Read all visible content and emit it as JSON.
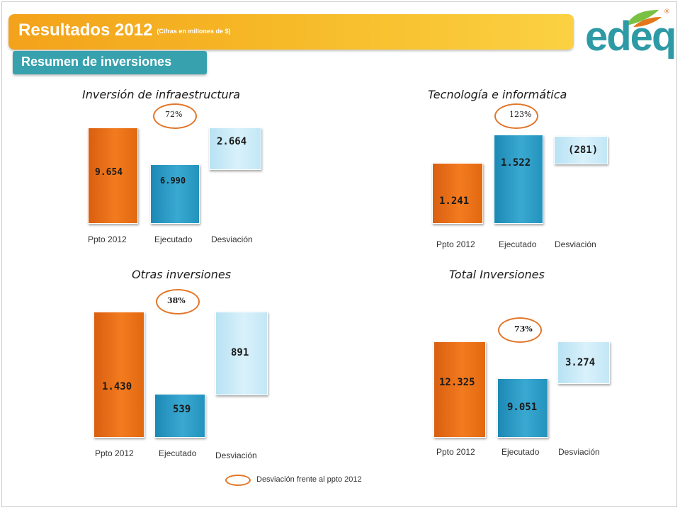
{
  "header": {
    "title": "Resultados 2012",
    "title_note": "(Cifras en millones de $)",
    "subtitle": "Resumen de inversiones"
  },
  "logo": {
    "text": "edeq",
    "registered": "®"
  },
  "colors": {
    "budget": "#f07a1e",
    "executed": "#2aa0cc",
    "deviation": "#cbe9f7",
    "title_bar": "#f6b826",
    "subtitle_tab": "#37a2ae",
    "ellipse": "#e2762a"
  },
  "legend": {
    "text": "Desviación frente al ppto 2012"
  },
  "chart_data": [
    {
      "type": "bar",
      "title": "Inversión de infraestructura",
      "categories": [
        "Ppto 2012",
        "Ejecutado",
        "Desviación"
      ],
      "values": [
        9654,
        6990,
        2664
      ],
      "value_labels": [
        "9.654",
        "6.990",
        "2.664"
      ],
      "execution_pct": "72%"
    },
    {
      "type": "bar",
      "title": "Tecnología e informática",
      "categories": [
        "Ppto 2012",
        "Ejecutado",
        "Desviación"
      ],
      "values": [
        1241,
        1522,
        -281
      ],
      "value_labels": [
        "1.241",
        "1.522",
        "(281)"
      ],
      "execution_pct": "123%"
    },
    {
      "type": "bar",
      "title": "Otras inversiones",
      "categories": [
        "Ppto 2012",
        "Ejecutado",
        "Desviación"
      ],
      "values": [
        1430,
        539,
        891
      ],
      "value_labels": [
        "1.430",
        "539",
        "891"
      ],
      "execution_pct": "38%"
    },
    {
      "type": "bar",
      "title": "Total Inversiones",
      "categories": [
        "Ppto 2012",
        "Ejecutado",
        "Desviación"
      ],
      "values": [
        12325,
        9051,
        3274
      ],
      "value_labels": [
        "12.325",
        "9.051",
        "3.274"
      ],
      "execution_pct": "73%"
    }
  ]
}
